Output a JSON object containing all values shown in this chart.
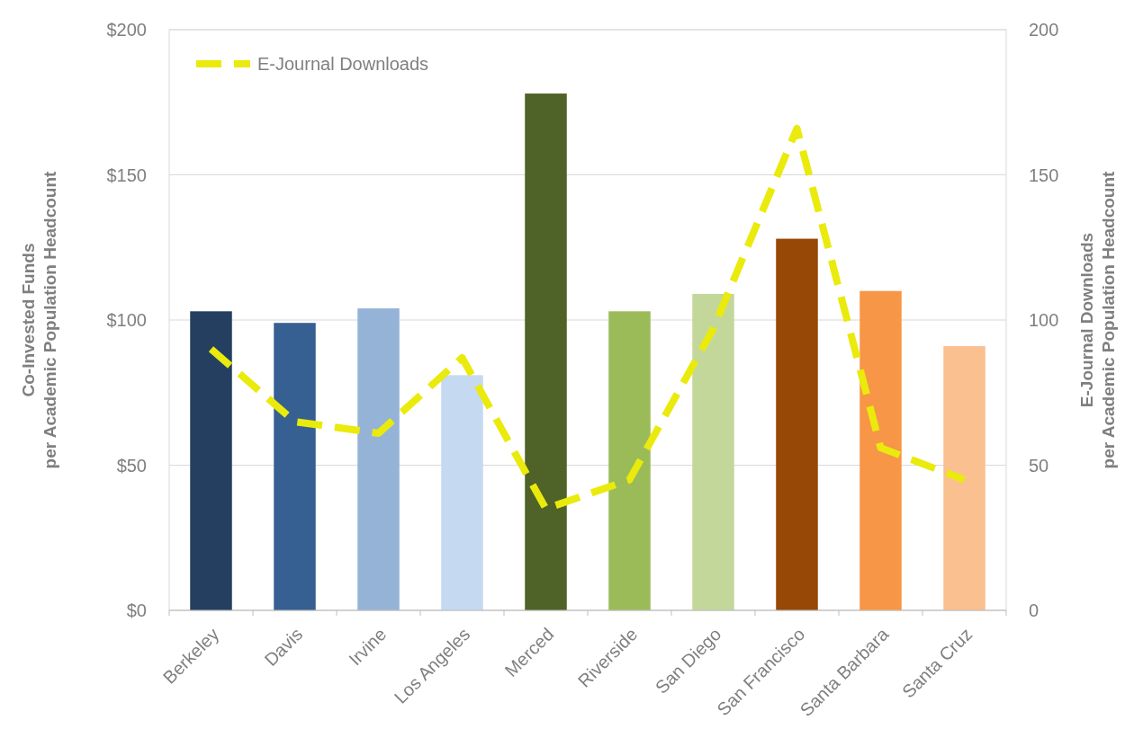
{
  "chart_data": {
    "type": "bar",
    "ylabel": "Co-Invested Funds\nper Academic Population Headcount",
    "y2label": "E-Journal Downloads\nper Academic Population Headcount",
    "categories": [
      "Berkeley",
      "Davis",
      "Irvine",
      "Los Angeles",
      "Merced",
      "Riverside",
      "San Diego",
      "San Francisco",
      "Santa Barbara",
      "Santa Cruz"
    ],
    "series": [
      {
        "colors": [
          "#243f60",
          "#366092",
          "#95b3d7",
          "#c5d9f1",
          "#4f6228",
          "#9bbb59",
          "#c4d79b",
          "#974706",
          "#f79646",
          "#fac090"
        ],
        "values": [
          103,
          99,
          104,
          81,
          178,
          103,
          109,
          128,
          110,
          91
        ]
      },
      {
        "type": "line",
        "name": "E-Journal Downloads",
        "color": "#eaea0c",
        "axis": "y2",
        "line_style": "dashed",
        "values": [
          90,
          65,
          61,
          87,
          35,
          45,
          97,
          166,
          56,
          45
        ]
      }
    ],
    "ylim": [
      0,
      200
    ],
    "yticks": [
      {
        "value": 0,
        "label": "$0"
      },
      {
        "value": 50,
        "label": "$50"
      },
      {
        "value": 100,
        "label": "$100"
      },
      {
        "value": 150,
        "label": "$150"
      },
      {
        "value": 200,
        "label": "$200"
      }
    ],
    "y2lim": [
      0,
      200
    ],
    "y2ticks": [
      0,
      50,
      100,
      150,
      200
    ],
    "grid": "y",
    "legend": "top left",
    "marker": "none"
  }
}
